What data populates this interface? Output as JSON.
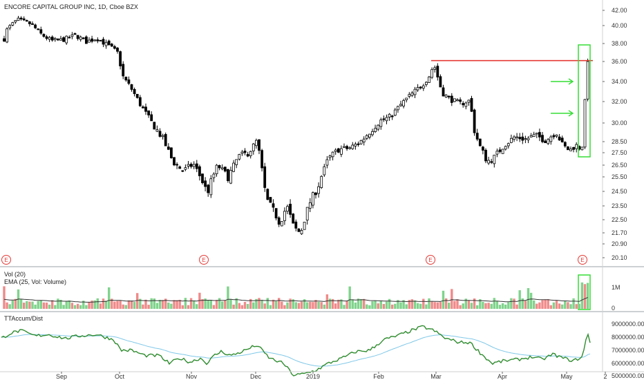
{
  "chart_data": {
    "type": "candlestick",
    "title": "ENCORE CAPITAL GROUP INC, 1D, Cboe BZX",
    "price_axis_ticks": [
      "42.00",
      "40.00",
      "38.00",
      "36.00",
      "34.00",
      "32.00",
      "30.00",
      "28.50",
      "27.50",
      "26.50",
      "25.50",
      "24.50",
      "23.50",
      "22.50",
      "21.70",
      "20.90",
      "20.10"
    ],
    "time_axis_labels": [
      "Sep",
      "Oct",
      "Nov",
      "Dec",
      "2019",
      "Feb",
      "Mar",
      "Apr",
      "May",
      "2"
    ],
    "volume_axis_ticks": [
      "1M",
      "0"
    ],
    "accum_axis_ticks": [
      "9000000.00",
      "8000000.00",
      "7000000.00",
      "6000000.00",
      "5000000.00"
    ],
    "earnings_markers": [
      "E",
      "E",
      "E",
      "E"
    ],
    "resistance_level": 36.1,
    "volume_panel": {
      "label_line1": "Vol (20)",
      "label_line2": "EMA (25, Vol: Volume)"
    },
    "accum_panel": {
      "label": "TTAccum/Dist"
    },
    "price_anchors": [
      {
        "t": -5,
        "p": 35.9
      },
      {
        "t": 10,
        "p": 39.5
      },
      {
        "t": 25,
        "p": 40.8
      },
      {
        "t": 45,
        "p": 40.2
      },
      {
        "t": 60,
        "p": 39.0
      },
      {
        "t": 75,
        "p": 38.3
      },
      {
        "t": 90,
        "p": 38.4
      },
      {
        "t": 110,
        "p": 38.9
      },
      {
        "t": 125,
        "p": 38.2
      },
      {
        "t": 140,
        "p": 38.6
      },
      {
        "t": 160,
        "p": 37.6
      },
      {
        "t": 170,
        "p": 37.0
      },
      {
        "t": 178,
        "p": 34.5
      },
      {
        "t": 190,
        "p": 33.3
      },
      {
        "t": 205,
        "p": 31.5
      },
      {
        "t": 220,
        "p": 30.0
      },
      {
        "t": 235,
        "p": 28.8
      },
      {
        "t": 250,
        "p": 26.8
      },
      {
        "t": 265,
        "p": 26.0
      },
      {
        "t": 280,
        "p": 26.6
      },
      {
        "t": 300,
        "p": 24.4
      },
      {
        "t": 315,
        "p": 26.5
      },
      {
        "t": 330,
        "p": 25.5
      },
      {
        "t": 345,
        "p": 27.2
      },
      {
        "t": 360,
        "p": 27.5
      },
      {
        "t": 372,
        "p": 28.6
      },
      {
        "t": 385,
        "p": 24.0
      },
      {
        "t": 395,
        "p": 23.2
      },
      {
        "t": 405,
        "p": 22.3
      },
      {
        "t": 415,
        "p": 23.5
      },
      {
        "t": 425,
        "p": 22.0
      },
      {
        "t": 435,
        "p": 21.7
      },
      {
        "t": 448,
        "p": 23.7
      },
      {
        "t": 460,
        "p": 24.8
      },
      {
        "t": 475,
        "p": 27.0
      },
      {
        "t": 490,
        "p": 27.8
      },
      {
        "t": 505,
        "p": 27.9
      },
      {
        "t": 520,
        "p": 28.4
      },
      {
        "t": 535,
        "p": 29.3
      },
      {
        "t": 550,
        "p": 30.2
      },
      {
        "t": 565,
        "p": 30.6
      },
      {
        "t": 580,
        "p": 31.7
      },
      {
        "t": 595,
        "p": 32.7
      },
      {
        "t": 610,
        "p": 33.6
      },
      {
        "t": 620,
        "p": 34.4
      },
      {
        "t": 628,
        "p": 35.7
      },
      {
        "t": 640,
        "p": 32.9
      },
      {
        "t": 650,
        "p": 32.3
      },
      {
        "t": 665,
        "p": 31.8
      },
      {
        "t": 680,
        "p": 32.1
      },
      {
        "t": 686,
        "p": 29.5
      },
      {
        "t": 695,
        "p": 28.0
      },
      {
        "t": 705,
        "p": 26.8
      },
      {
        "t": 715,
        "p": 27.1
      },
      {
        "t": 730,
        "p": 28.2
      },
      {
        "t": 745,
        "p": 28.9
      },
      {
        "t": 760,
        "p": 28.7
      },
      {
        "t": 775,
        "p": 29.0
      },
      {
        "t": 790,
        "p": 28.6
      },
      {
        "t": 805,
        "p": 29.3
      },
      {
        "t": 815,
        "p": 28.1
      },
      {
        "t": 825,
        "p": 27.7
      },
      {
        "t": 833,
        "p": 28.2
      },
      {
        "t": 842,
        "p": 27.8
      },
      {
        "t": 846,
        "p": 31.5
      },
      {
        "t": 851,
        "p": 36.0
      }
    ],
    "accum_anchors": [
      {
        "t": -5,
        "p": 7.7
      },
      {
        "t": 15,
        "p": 8.3
      },
      {
        "t": 30,
        "p": 8.5
      },
      {
        "t": 50,
        "p": 8.1
      },
      {
        "t": 70,
        "p": 8.2
      },
      {
        "t": 95,
        "p": 7.9
      },
      {
        "t": 115,
        "p": 8.1
      },
      {
        "t": 140,
        "p": 8.2
      },
      {
        "t": 165,
        "p": 7.8
      },
      {
        "t": 175,
        "p": 7.0
      },
      {
        "t": 190,
        "p": 7.0
      },
      {
        "t": 210,
        "p": 6.6
      },
      {
        "t": 230,
        "p": 6.6
      },
      {
        "t": 245,
        "p": 6.0
      },
      {
        "t": 260,
        "p": 6.4
      },
      {
        "t": 275,
        "p": 6.1
      },
      {
        "t": 290,
        "p": 6.4
      },
      {
        "t": 300,
        "p": 6.0
      },
      {
        "t": 310,
        "p": 6.6
      },
      {
        "t": 320,
        "p": 6.9
      },
      {
        "t": 335,
        "p": 6.6
      },
      {
        "t": 350,
        "p": 6.9
      },
      {
        "t": 372,
        "p": 7.4
      },
      {
        "t": 390,
        "p": 6.4
      },
      {
        "t": 410,
        "p": 6.0
      },
      {
        "t": 425,
        "p": 5.1
      },
      {
        "t": 440,
        "p": 5.2
      },
      {
        "t": 458,
        "p": 5.5
      },
      {
        "t": 475,
        "p": 6.0
      },
      {
        "t": 495,
        "p": 6.4
      },
      {
        "t": 515,
        "p": 6.9
      },
      {
        "t": 535,
        "p": 7.0
      },
      {
        "t": 555,
        "p": 7.8
      },
      {
        "t": 575,
        "p": 8.1
      },
      {
        "t": 595,
        "p": 8.5
      },
      {
        "t": 612,
        "p": 8.8
      },
      {
        "t": 628,
        "p": 8.5
      },
      {
        "t": 645,
        "p": 7.9
      },
      {
        "t": 665,
        "p": 7.6
      },
      {
        "t": 680,
        "p": 7.6
      },
      {
        "t": 695,
        "p": 6.8
      },
      {
        "t": 712,
        "p": 6.0
      },
      {
        "t": 730,
        "p": 6.2
      },
      {
        "t": 750,
        "p": 6.3
      },
      {
        "t": 770,
        "p": 6.5
      },
      {
        "t": 785,
        "p": 6.3
      },
      {
        "t": 800,
        "p": 6.7
      },
      {
        "t": 815,
        "p": 6.4
      },
      {
        "t": 830,
        "p": 6.2
      },
      {
        "t": 843,
        "p": 6.5
      },
      {
        "t": 850,
        "p": 8.3
      },
      {
        "t": 855,
        "p": 7.5
      }
    ],
    "colors": {
      "up_candle": "#ffffff",
      "down_candle": "#000000",
      "candle_outline": "#000000",
      "resistance_line": "#e53935",
      "highlight_box": "#33dd33",
      "arrow": "#33dd33",
      "volume_up": "#80d38c",
      "volume_down": "#f08a8a",
      "volume_ema": "#333333",
      "accum_line": "#2e8b2e",
      "accum_signal": "#7fc8e8",
      "earnings_marker": "#e53935"
    }
  }
}
